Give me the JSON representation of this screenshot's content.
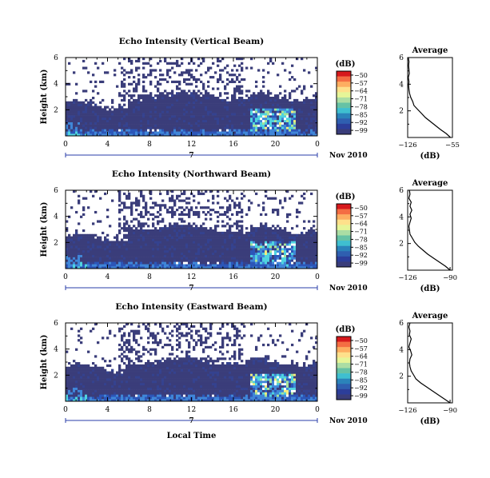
{
  "date_label": "Nov 2010",
  "xlabel": "Local Time",
  "colorbar": {
    "unit": "(dB)",
    "ticks": [
      "-50",
      "-57",
      "-64",
      "-71",
      "-78",
      "-85",
      "-92",
      "-99"
    ],
    "colors": [
      "#d7191c",
      "#f46d43",
      "#fdae61",
      "#fee08b",
      "#e6f598",
      "#abdda4",
      "#66c2a5",
      "#3fbfd0",
      "#2b83ba",
      "#2f5fb0",
      "#2c3e9a",
      "#3a3d7a"
    ]
  },
  "chart_data": [
    {
      "type": "heatmap",
      "title": "Echo Intensity (Vertical Beam)",
      "xlabel": "",
      "ylabel": "Height (km)",
      "xlim": [
        0,
        24
      ],
      "ylim": [
        0,
        6
      ],
      "x_ticks": [
        "0",
        "4",
        "8",
        "12",
        "16",
        "20",
        "0"
      ],
      "y_ticks": [
        "2",
        "4",
        "6"
      ],
      "day_label": "7",
      "colorbar_ticks": [
        "-50",
        "-57",
        "-64",
        "-71",
        "-78",
        "-85",
        "-92",
        "-99"
      ],
      "colorbar_unit": "(dB)",
      "profile": {
        "title": "Average",
        "xlabel": "(dB)",
        "x_ticks": [
          "-126",
          "-55"
        ],
        "xlim": [
          -126,
          -55
        ],
        "y_ticks": [
          "2",
          "4",
          "6"
        ],
        "ylim": [
          0,
          6
        ],
        "height": [
          0.0,
          0.3,
          0.6,
          0.9,
          1.2,
          1.5,
          1.8,
          2.1,
          2.4,
          2.7,
          3.0,
          3.3,
          3.6,
          3.9,
          4.2,
          4.5,
          4.8,
          5.1,
          5.4,
          5.7,
          6.0
        ],
        "db": [
          -58,
          -65,
          -74,
          -82,
          -90,
          -98,
          -104,
          -110,
          -116,
          -118,
          -121,
          -123,
          -124,
          -124.5,
          -124,
          -125,
          -123.5,
          -124,
          -124.5,
          -124,
          -125
        ]
      }
    },
    {
      "type": "heatmap",
      "title": "Echo Intensity (Northward Beam)",
      "xlabel": "",
      "ylabel": "Height (km)",
      "xlim": [
        0,
        24
      ],
      "ylim": [
        0,
        6
      ],
      "x_ticks": [
        "0",
        "4",
        "8",
        "12",
        "16",
        "20",
        "0"
      ],
      "y_ticks": [
        "2",
        "4",
        "6"
      ],
      "day_label": "7",
      "colorbar_ticks": [
        "-50",
        "-57",
        "-64",
        "-71",
        "-78",
        "-85",
        "-92",
        "-99"
      ],
      "colorbar_unit": "(dB)",
      "profile": {
        "title": "Average",
        "xlabel": "(dB)",
        "x_ticks": [
          "-126",
          "-90"
        ],
        "xlim": [
          -126,
          -88
        ],
        "y_ticks": [
          "2",
          "4",
          "6"
        ],
        "ylim": [
          0,
          6
        ],
        "height": [
          0.0,
          0.3,
          0.6,
          0.9,
          1.2,
          1.5,
          1.8,
          2.1,
          2.4,
          2.7,
          3.0,
          3.3,
          3.6,
          3.9,
          4.2,
          4.5,
          4.8,
          5.1,
          5.4,
          5.7,
          6.0
        ],
        "db": [
          -90,
          -94,
          -99,
          -104,
          -109,
          -113,
          -117,
          -120,
          -122,
          -124,
          -124.5,
          -125,
          -124,
          -123,
          -124,
          -122.5,
          -124,
          -123,
          -125,
          -124,
          -124.5
        ]
      }
    },
    {
      "type": "heatmap",
      "title": "Echo Intensity (Eastward Beam)",
      "xlabel": "Local Time",
      "ylabel": "Height (km)",
      "xlim": [
        0,
        24
      ],
      "ylim": [
        0,
        6
      ],
      "x_ticks": [
        "0",
        "4",
        "8",
        "12",
        "16",
        "20",
        "0"
      ],
      "y_ticks": [
        "2",
        "4",
        "6"
      ],
      "day_label": "7",
      "colorbar_ticks": [
        "-50",
        "-57",
        "-64",
        "-71",
        "-78",
        "-85",
        "-92",
        "-99"
      ],
      "colorbar_unit": "(dB)",
      "profile": {
        "title": "Average",
        "xlabel": "(dB)",
        "x_ticks": [
          "-126",
          "-90"
        ],
        "xlim": [
          -126,
          -88
        ],
        "y_ticks": [
          "2",
          "4",
          "6"
        ],
        "ylim": [
          0,
          6
        ],
        "height": [
          0.0,
          0.3,
          0.6,
          0.9,
          1.2,
          1.5,
          1.8,
          2.1,
          2.4,
          2.7,
          3.0,
          3.3,
          3.6,
          3.9,
          4.2,
          4.5,
          4.8,
          5.1,
          5.4,
          5.7,
          6.0
        ],
        "db": [
          -90,
          -95,
          -100,
          -105,
          -110,
          -115,
          -119,
          -121,
          -123,
          -124,
          -124.5,
          -124,
          -122.5,
          -123.5,
          -125,
          -124,
          -123,
          -124.5,
          -124,
          -125,
          -124
        ]
      }
    }
  ]
}
